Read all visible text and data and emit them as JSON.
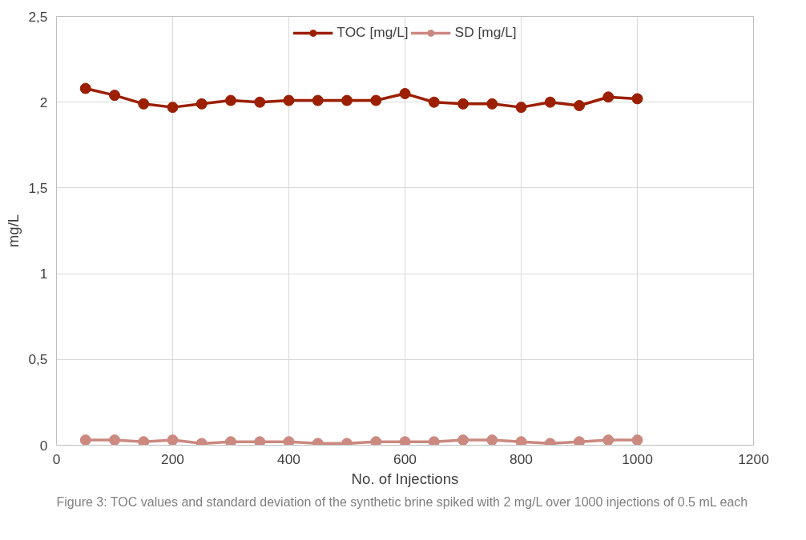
{
  "chart_data": {
    "type": "line",
    "xlabel": "No. of Injections",
    "ylabel": "mg/L",
    "x": [
      50,
      100,
      150,
      200,
      250,
      300,
      350,
      400,
      450,
      500,
      550,
      600,
      650,
      700,
      750,
      800,
      850,
      900,
      950,
      1000
    ],
    "series": [
      {
        "name": "TOC [mg/L]",
        "color": "#9c1f00",
        "values": [
          2.08,
          2.04,
          1.99,
          1.97,
          1.99,
          2.01,
          2.0,
          2.01,
          2.01,
          2.01,
          2.01,
          2.05,
          2.0,
          1.99,
          1.99,
          1.97,
          2.0,
          1.98,
          2.03,
          2.02
        ]
      },
      {
        "name": "SD [mg/L]",
        "color": "#cb8980",
        "values": [
          0.03,
          0.03,
          0.02,
          0.03,
          0.01,
          0.02,
          0.02,
          0.02,
          0.01,
          0.01,
          0.02,
          0.02,
          0.02,
          0.03,
          0.03,
          0.02,
          0.01,
          0.02,
          0.03,
          0.03
        ]
      }
    ],
    "xlim": [
      0,
      1200
    ],
    "xticks": [
      0,
      200,
      400,
      600,
      800,
      1000,
      1200
    ],
    "ylim": [
      0,
      2.5
    ],
    "yticks": [
      0,
      {
        "value": 0.5,
        "label": "0,5"
      },
      1,
      {
        "value": 1.5,
        "label": "1,5"
      },
      2,
      {
        "value": 2.5,
        "label": "2,5"
      }
    ],
    "grid": true,
    "legend": "top",
    "marker": "circle",
    "line_style": "solid",
    "annotations": [
      "Figure 3: TOC values and standard deviation of the synthetic brine spiked with 2 mg/L over 1000 injections of 0.5 mL  each"
    ]
  }
}
